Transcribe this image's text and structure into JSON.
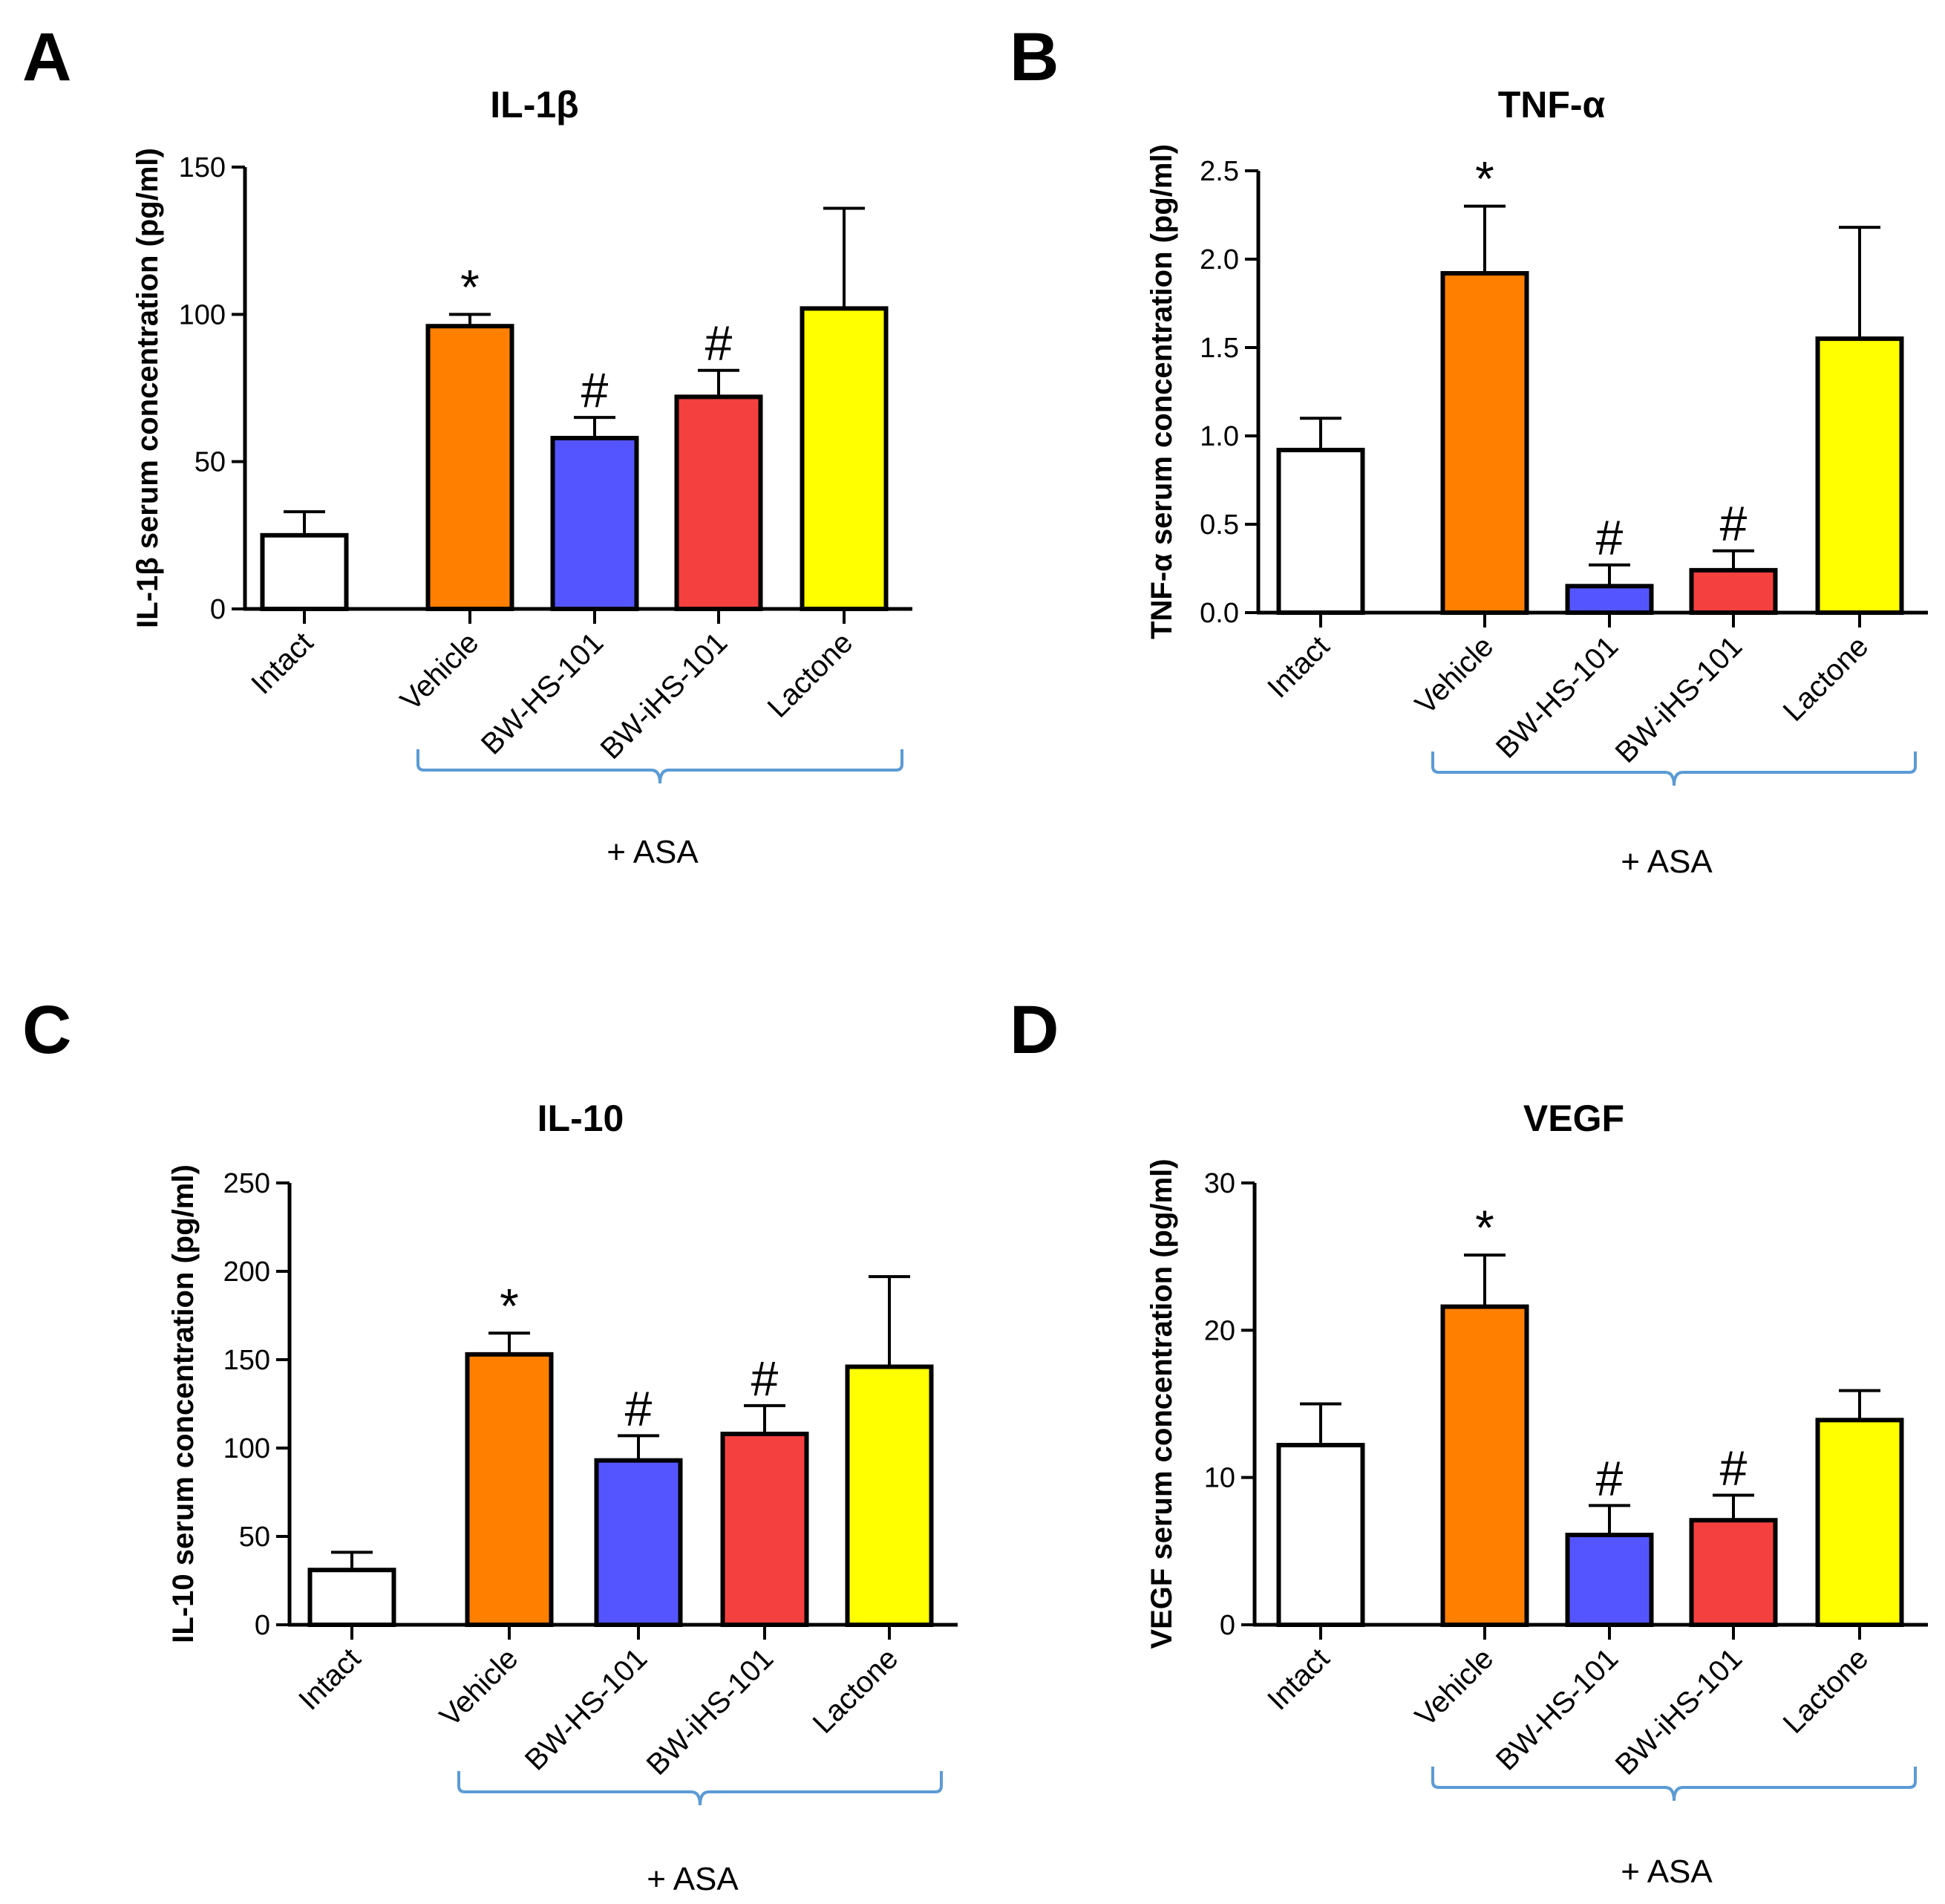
{
  "chart_data": [
    {
      "panel": "A",
      "type": "bar",
      "title": "IL-1β",
      "ylabel": "IL-1β serum concentration (pg/ml)",
      "xlabel": "",
      "categories": [
        "Intact",
        "Vehicle",
        "BW-HS-101",
        "BW-iHS-101",
        "Lactone"
      ],
      "values": [
        25,
        96,
        58,
        72,
        102
      ],
      "errors": [
        8,
        4,
        7,
        9,
        34
      ],
      "colors": [
        "#ffffff",
        "#ff7f00",
        "#5555ff",
        "#f54040",
        "#ffff00"
      ],
      "significance": [
        "",
        "*",
        "#",
        "#",
        ""
      ],
      "ylim": [
        0,
        150
      ],
      "yticks": [
        "0",
        "50",
        "100",
        "150"
      ],
      "group_label": "+ ASA"
    },
    {
      "panel": "B",
      "type": "bar",
      "title": "TNF-α",
      "ylabel": "TNF-α serum concentration (pg/ml)",
      "xlabel": "",
      "categories": [
        "Intact",
        "Vehicle",
        "BW-HS-101",
        "BW-iHS-101",
        "Lactone"
      ],
      "values": [
        0.92,
        1.92,
        0.15,
        0.24,
        1.55
      ],
      "errors": [
        0.18,
        0.38,
        0.12,
        0.11,
        0.63
      ],
      "colors": [
        "#ffffff",
        "#ff7f00",
        "#5555ff",
        "#f54040",
        "#ffff00"
      ],
      "significance": [
        "",
        "*",
        "#",
        "#",
        ""
      ],
      "ylim": [
        0,
        2.5
      ],
      "yticks": [
        "0.0",
        "0.5",
        "1.0",
        "1.5",
        "2.0",
        "2.5"
      ],
      "group_label": "+ ASA"
    },
    {
      "panel": "C",
      "type": "bar",
      "title": "IL-10",
      "ylabel": "IL-10 serum concentration (pg/ml)",
      "xlabel": "",
      "categories": [
        "Intact",
        "Vehicle",
        "BW-HS-101",
        "BW-iHS-101",
        "Lactone"
      ],
      "values": [
        31,
        153,
        93,
        108,
        146
      ],
      "errors": [
        10,
        12,
        14,
        16,
        51
      ],
      "colors": [
        "#ffffff",
        "#ff7f00",
        "#5555ff",
        "#f54040",
        "#ffff00"
      ],
      "significance": [
        "",
        "*",
        "#",
        "#",
        ""
      ],
      "ylim": [
        0,
        250
      ],
      "yticks": [
        "0",
        "50",
        "100",
        "150",
        "200",
        "250"
      ],
      "group_label": "+ ASA"
    },
    {
      "panel": "D",
      "type": "bar",
      "title": "VEGF",
      "ylabel": "VEGF serum concentration (pg/ml)",
      "xlabel": "",
      "categories": [
        "Intact",
        "Vehicle",
        "BW-HS-101",
        "BW-iHS-101",
        "Lactone"
      ],
      "values": [
        12.2,
        21.6,
        6.1,
        7.1,
        13.9
      ],
      "errors": [
        2.8,
        3.5,
        2.0,
        1.7,
        2.0
      ],
      "colors": [
        "#ffffff",
        "#ff7f00",
        "#5555ff",
        "#f54040",
        "#ffff00"
      ],
      "significance": [
        "",
        "*",
        "#",
        "#",
        ""
      ],
      "ylim": [
        0,
        30
      ],
      "yticks": [
        "0",
        "10",
        "20",
        "30"
      ],
      "group_label": "+ ASA"
    }
  ]
}
